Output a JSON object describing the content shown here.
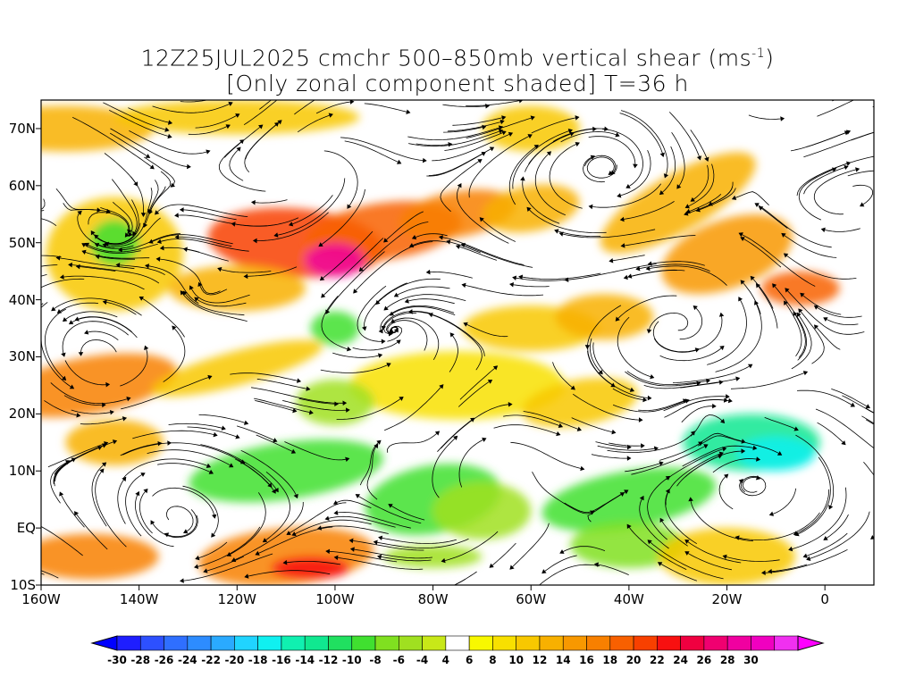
{
  "title": {
    "line1_pre": "12Z25JUL2025 cmchr 500–850mb vertical shear (ms",
    "line1_sup": "-1",
    "line1_post": ")",
    "line2": "[Only zonal component shaded] T=36 h"
  },
  "map": {
    "lon_range": [
      -160,
      10
    ],
    "lat_range": [
      -10,
      75
    ],
    "y_ticks": [
      "70N",
      "60N",
      "50N",
      "40N",
      "30N",
      "20N",
      "10N",
      "EQ",
      "10S"
    ],
    "y_tick_values": [
      70,
      60,
      50,
      40,
      30,
      20,
      10,
      0,
      -10
    ],
    "x_ticks": [
      "160W",
      "140W",
      "120W",
      "100W",
      "80W",
      "60W",
      "40W",
      "20W",
      "0"
    ],
    "x_tick_values": [
      -160,
      -140,
      -120,
      -100,
      -80,
      -60,
      -40,
      -20,
      0
    ],
    "overlay": "streamlines",
    "shaded_field": "zonal component of 500-850mb vertical shear"
  },
  "colorbar": {
    "labels": [
      "-30",
      "-28",
      "-26",
      "-24",
      "-22",
      "-20",
      "-18",
      "-16",
      "-14",
      "-12",
      "-10",
      "-8",
      "-6",
      "-4",
      "4",
      "6",
      "8",
      "10",
      "12",
      "14",
      "16",
      "18",
      "20",
      "22",
      "24",
      "26",
      "28",
      "30"
    ],
    "colors": [
      "#1e1eff",
      "#2d50ff",
      "#2f6fff",
      "#2d8cff",
      "#2aaaff",
      "#20d4ff",
      "#10f0f0",
      "#10f0b0",
      "#10e890",
      "#20e060",
      "#40e030",
      "#80e020",
      "#a0e020",
      "#c8e818",
      "#ffffff",
      "#f8f800",
      "#f8e000",
      "#f8c800",
      "#f8b000",
      "#f89800",
      "#f88000",
      "#f86000",
      "#f84000",
      "#f81010",
      "#f00040",
      "#f00070",
      "#f000a0",
      "#f000c0",
      "#f030f0"
    ],
    "low_arrow_color": "#0000ff",
    "high_arrow_color": "#ff00ff"
  }
}
